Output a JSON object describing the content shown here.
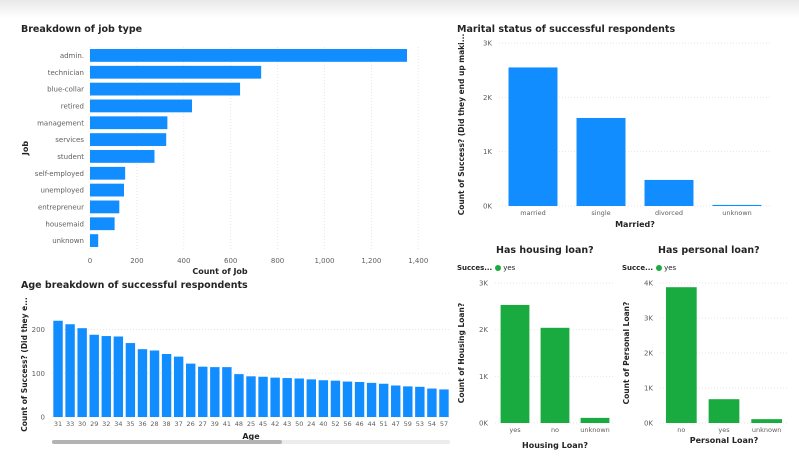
{
  "colors": {
    "blue": "#118dff",
    "green": "#1aab40",
    "grid": "#e6e6e6",
    "axis_text": "#605e5c"
  },
  "chart_data": [
    {
      "id": "job",
      "type": "bar",
      "orientation": "horizontal",
      "title": "Breakdown of job type",
      "xlabel": "Count of Job",
      "ylabel": "Job",
      "categories": [
        "admin.",
        "technician",
        "blue-collar",
        "retired",
        "management",
        "services",
        "student",
        "self-employed",
        "unemployed",
        "entrepreneur",
        "housemaid",
        "unknown"
      ],
      "values": [
        1352,
        730,
        640,
        435,
        330,
        325,
        275,
        150,
        145,
        125,
        105,
        35
      ],
      "xlim": [
        0,
        1450
      ],
      "xticks": [
        0,
        200,
        400,
        600,
        800,
        1000,
        1200,
        1400
      ],
      "xtick_labels": [
        "0",
        "200",
        "400",
        "600",
        "800",
        "1,000",
        "1,200",
        "1,400"
      ],
      "grid": true,
      "color": "#118dff"
    },
    {
      "id": "marital",
      "type": "bar",
      "title": "Marital status of successful respondents",
      "xlabel": "Married?",
      "ylabel": "Count of Success? (Did they end up maki...",
      "categories": [
        "married",
        "single",
        "divorced",
        "unknown"
      ],
      "values": [
        2550,
        1620,
        480,
        20
      ],
      "ylim": [
        0,
        3000
      ],
      "yticks": [
        0,
        1000,
        2000,
        3000
      ],
      "ytick_labels": [
        "0K",
        "1K",
        "2K",
        "3K"
      ],
      "grid": true,
      "color": "#118dff"
    },
    {
      "id": "age",
      "type": "bar",
      "title": "Age breakdown of successful respondents",
      "xlabel": "Age",
      "ylabel": "Count of Success? (Did they e...",
      "categories": [
        "31",
        "33",
        "30",
        "29",
        "32",
        "34",
        "35",
        "36",
        "28",
        "38",
        "37",
        "26",
        "27",
        "39",
        "41",
        "48",
        "25",
        "45",
        "42",
        "43",
        "50",
        "24",
        "40",
        "52",
        "56",
        "46",
        "44",
        "51",
        "47",
        "59",
        "53",
        "54",
        "57"
      ],
      "values": [
        220,
        212,
        203,
        188,
        185,
        184,
        169,
        155,
        152,
        144,
        138,
        122,
        115,
        114,
        114,
        98,
        93,
        92,
        90,
        89,
        88,
        86,
        84,
        83,
        81,
        80,
        78,
        76,
        72,
        70,
        69,
        65,
        63
      ],
      "ylim": [
        0,
        240
      ],
      "yticks": [
        0,
        100,
        200
      ],
      "ytick_labels": [
        "0",
        "100",
        "200"
      ],
      "grid": true,
      "color": "#118dff"
    },
    {
      "id": "housing",
      "type": "bar",
      "title": "Has housing loan?",
      "xlabel": "Housing Loan?",
      "ylabel": "Count of Housing Loan?",
      "legend_title": "Succes...",
      "legend": [
        "yes"
      ],
      "categories": [
        "yes",
        "no",
        "unknown"
      ],
      "values": [
        2530,
        2040,
        110
      ],
      "ylim": [
        0,
        3000
      ],
      "yticks": [
        0,
        1000,
        2000,
        3000
      ],
      "ytick_labels": [
        "0K",
        "1K",
        "2K",
        "3K"
      ],
      "grid": true,
      "color": "#1aab40"
    },
    {
      "id": "personal",
      "type": "bar",
      "title": "Has personal loan?",
      "xlabel": "Personal Loan?",
      "ylabel": "Count of Personal Loan?",
      "legend_title": "Succe...",
      "legend": [
        "yes"
      ],
      "categories": [
        "no",
        "yes",
        "unknown"
      ],
      "values": [
        3880,
        680,
        110
      ],
      "ylim": [
        0,
        4000
      ],
      "yticks": [
        0,
        1000,
        2000,
        3000,
        4000
      ],
      "ytick_labels": [
        "0K",
        "1K",
        "2K",
        "3K",
        "4K"
      ],
      "grid": true,
      "color": "#1aab40"
    }
  ]
}
